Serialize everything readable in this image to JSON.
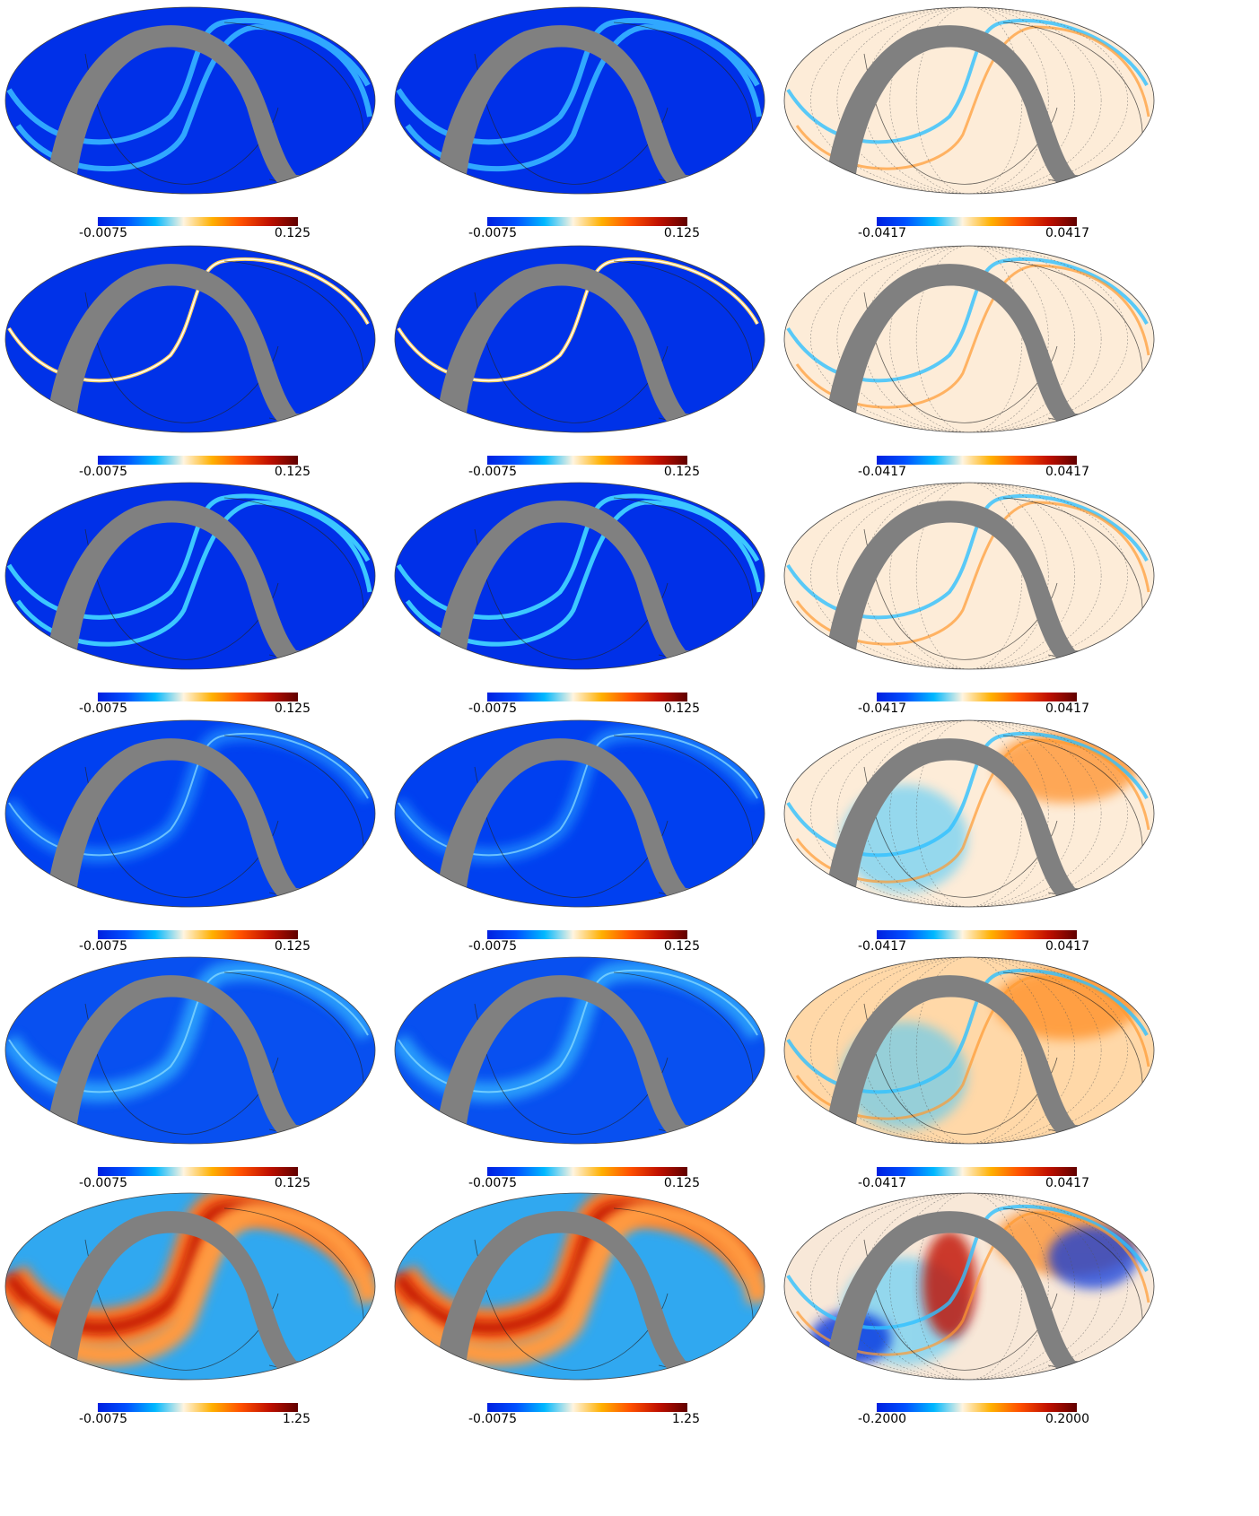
{
  "colors": {
    "mask": "#808080",
    "scale": [
      "#0020e0",
      "#0050ff",
      "#00b8ff",
      "#fff4e0",
      "#ffb000",
      "#ff5000",
      "#c01000",
      "#600000"
    ]
  },
  "panels": [
    {
      "row": 1,
      "col": 1,
      "min": "-0.0075",
      "max": "0.125"
    },
    {
      "row": 1,
      "col": 2,
      "min": "-0.0075",
      "max": "0.125"
    },
    {
      "row": 1,
      "col": 3,
      "min": "-0.0417",
      "max": "0.0417"
    },
    {
      "row": 2,
      "col": 1,
      "min": "-0.0075",
      "max": "0.125"
    },
    {
      "row": 2,
      "col": 2,
      "min": "-0.0075",
      "max": "0.125"
    },
    {
      "row": 2,
      "col": 3,
      "min": "-0.0417",
      "max": "0.0417"
    },
    {
      "row": 3,
      "col": 1,
      "min": "-0.0075",
      "max": "0.125"
    },
    {
      "row": 3,
      "col": 2,
      "min": "-0.0075",
      "max": "0.125"
    },
    {
      "row": 3,
      "col": 3,
      "min": "-0.0417",
      "max": "0.0417"
    },
    {
      "row": 4,
      "col": 1,
      "min": "-0.0075",
      "max": "0.125"
    },
    {
      "row": 4,
      "col": 2,
      "min": "-0.0075",
      "max": "0.125"
    },
    {
      "row": 4,
      "col": 3,
      "min": "-0.0417",
      "max": "0.0417"
    },
    {
      "row": 5,
      "col": 1,
      "min": "-0.0075",
      "max": "0.125"
    },
    {
      "row": 5,
      "col": 2,
      "min": "-0.0075",
      "max": "0.125"
    },
    {
      "row": 5,
      "col": 3,
      "min": "-0.0417",
      "max": "0.0417"
    },
    {
      "row": 6,
      "col": 1,
      "min": "-0.0075",
      "max": "1.25"
    },
    {
      "row": 6,
      "col": 2,
      "min": "-0.0075",
      "max": "1.25"
    },
    {
      "row": 6,
      "col": 3,
      "min": "-0.2000",
      "max": "0.2000"
    }
  ]
}
